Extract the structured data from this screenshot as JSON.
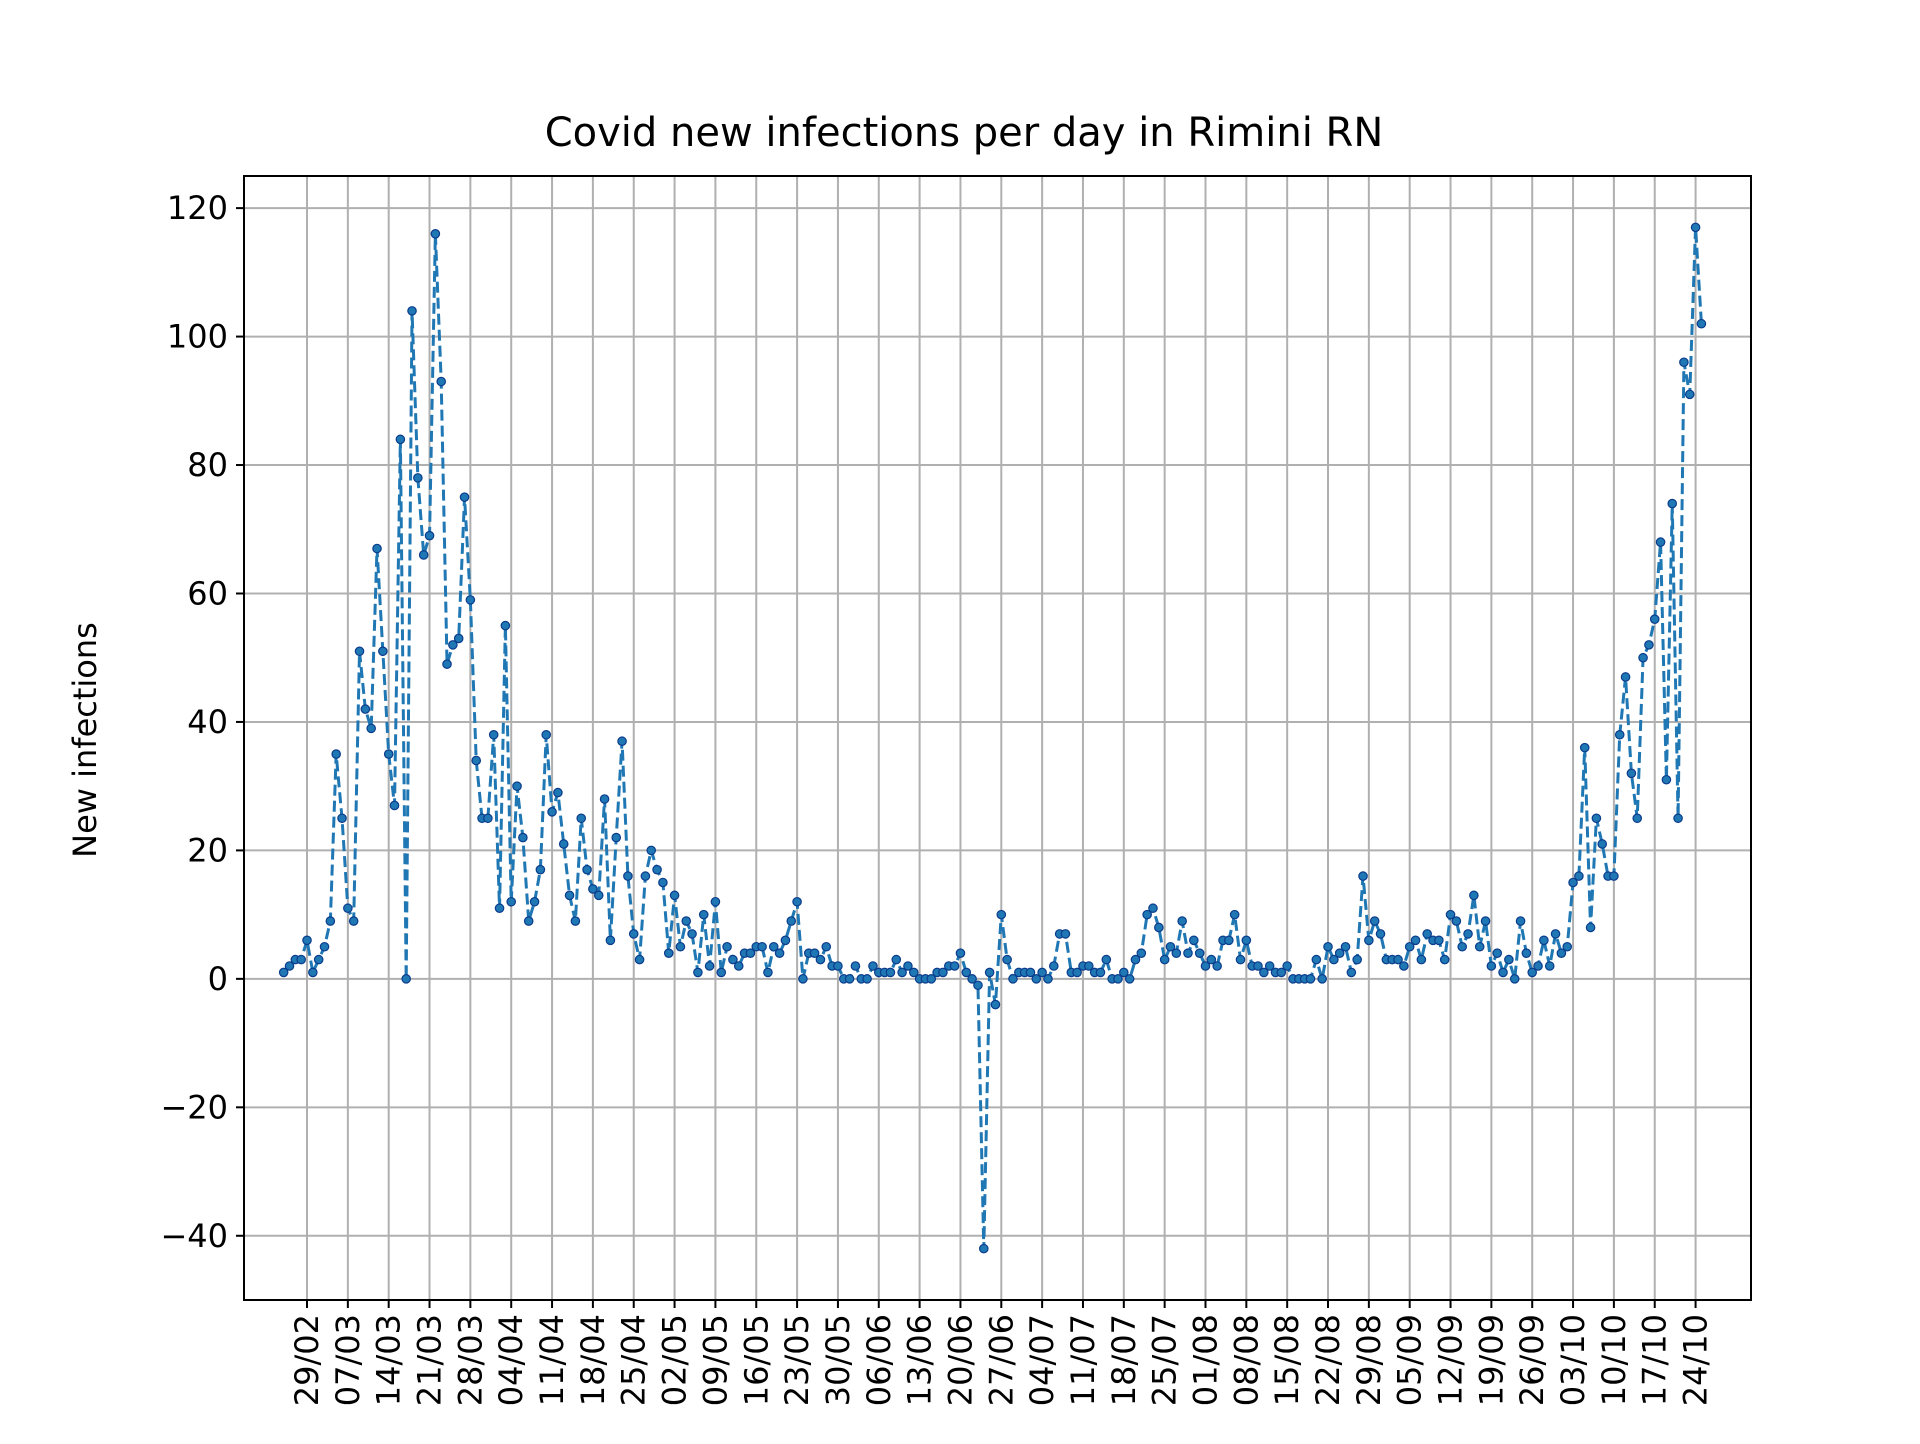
{
  "chart_data": {
    "type": "line",
    "title": "Covid new infections per day in Rimini RN",
    "xlabel": "",
    "ylabel": "New infections",
    "ylim": [
      -50,
      125
    ],
    "yticks": [
      -40,
      -20,
      0,
      20,
      40,
      60,
      80,
      100,
      120
    ],
    "ytick_labels": [
      "−40",
      "−20",
      "0",
      "20",
      "40",
      "60",
      "80",
      "100",
      "120"
    ],
    "x_start": "2020-02-25",
    "xticks": [
      "2020-02-29",
      "2020-03-07",
      "2020-03-14",
      "2020-03-21",
      "2020-03-28",
      "2020-04-04",
      "2020-04-11",
      "2020-04-18",
      "2020-04-25",
      "2020-05-02",
      "2020-05-09",
      "2020-05-16",
      "2020-05-23",
      "2020-05-30",
      "2020-06-06",
      "2020-06-13",
      "2020-06-20",
      "2020-06-27",
      "2020-07-04",
      "2020-07-11",
      "2020-07-18",
      "2020-07-25",
      "2020-08-01",
      "2020-08-08",
      "2020-08-15",
      "2020-08-22",
      "2020-08-29",
      "2020-09-05",
      "2020-09-12",
      "2020-09-19",
      "2020-09-26",
      "2020-10-03",
      "2020-10-10",
      "2020-10-17",
      "2020-10-24"
    ],
    "xtick_labels": [
      "29/02",
      "07/03",
      "14/03",
      "21/03",
      "28/03",
      "04/04",
      "11/04",
      "18/04",
      "25/04",
      "02/05",
      "09/05",
      "16/05",
      "23/05",
      "30/05",
      "06/06",
      "13/06",
      "20/06",
      "27/06",
      "04/07",
      "11/07",
      "18/07",
      "25/07",
      "01/08",
      "08/08",
      "15/08",
      "22/08",
      "29/08",
      "05/09",
      "12/09",
      "19/09",
      "26/09",
      "03/10",
      "10/10",
      "17/10",
      "24/10"
    ],
    "grid": true,
    "line_style": "dashed",
    "marker": "dot",
    "series": [
      {
        "name": "",
        "color": "#1f77b4",
        "values": [
          1,
          2,
          3,
          3,
          6,
          1,
          3,
          5,
          9,
          35,
          25,
          11,
          9,
          51,
          42,
          39,
          67,
          51,
          35,
          27,
          84,
          0,
          104,
          78,
          66,
          69,
          116,
          93,
          49,
          52,
          53,
          75,
          59,
          34,
          25,
          25,
          38,
          11,
          55,
          12,
          30,
          22,
          9,
          12,
          17,
          38,
          26,
          29,
          21,
          13,
          9,
          25,
          17,
          14,
          13,
          28,
          6,
          22,
          37,
          16,
          7,
          3,
          16,
          20,
          17,
          15,
          4,
          13,
          5,
          9,
          7,
          1,
          10,
          2,
          12,
          1,
          5,
          3,
          2,
          4,
          4,
          5,
          5,
          1,
          5,
          4,
          6,
          9,
          12,
          0,
          4,
          4,
          3,
          5,
          2,
          2,
          0,
          0,
          2,
          0,
          0,
          2,
          1,
          1,
          1,
          3,
          1,
          2,
          1,
          0,
          0,
          0,
          1,
          1,
          2,
          2,
          4,
          1,
          0,
          -1,
          -42,
          1,
          -4,
          10,
          3,
          0,
          1,
          1,
          1,
          0,
          1,
          0,
          2,
          7,
          7,
          1,
          1,
          2,
          2,
          1,
          1,
          3,
          0,
          0,
          1,
          0,
          3,
          4,
          10,
          11,
          8,
          3,
          5,
          4,
          9,
          4,
          6,
          4,
          2,
          3,
          2,
          6,
          6,
          10,
          3,
          6,
          2,
          2,
          1,
          2,
          1,
          1,
          2,
          0,
          0,
          0,
          0,
          3,
          0,
          5,
          3,
          4,
          5,
          1,
          3,
          16,
          6,
          9,
          7,
          3,
          3,
          3,
          2,
          5,
          6,
          3,
          7,
          6,
          6,
          3,
          10,
          9,
          5,
          7,
          13,
          5,
          9,
          2,
          4,
          1,
          3,
          0,
          9,
          4,
          1,
          2,
          6,
          2,
          7,
          4,
          5,
          15,
          16,
          36,
          8,
          25,
          21,
          16,
          16,
          38,
          47,
          32,
          25,
          50,
          52,
          56,
          68,
          31,
          74,
          25,
          96,
          91,
          117,
          102
        ]
      }
    ]
  }
}
